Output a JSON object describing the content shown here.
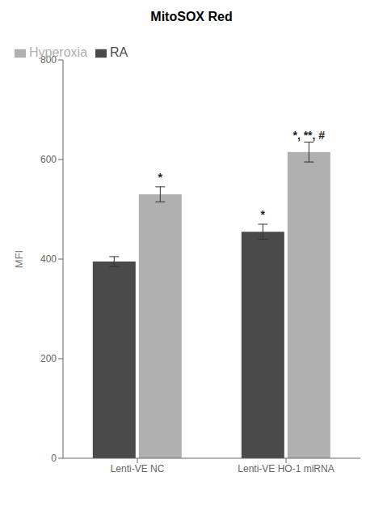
{
  "chart_data": {
    "type": "bar",
    "title": "MitoSOX Red",
    "y_label": "MFI",
    "categories": [
      "Lenti-VE NC",
      "Lenti-VE HO-1 miRNA"
    ],
    "series": [
      {
        "name": "RA",
        "color": "#4a4a4a",
        "values": [
          395,
          455
        ],
        "errors": [
          10,
          15
        ]
      },
      {
        "name": "Hyperoxia",
        "color": "#b0b0b0",
        "values": [
          530,
          615
        ],
        "errors": [
          15,
          20
        ]
      }
    ],
    "ylim": [
      0,
      800
    ],
    "yticks": [
      0,
      200,
      400,
      600,
      800
    ],
    "grid": false,
    "legend": "upper left",
    "annotations": [
      {
        "text": "*",
        "series": "Hyperoxia",
        "category": "Lenti-VE NC"
      },
      {
        "text": "*",
        "series": "RA",
        "category": "Lenti-VE HO-1 miRNA"
      },
      {
        "text": "*, **, #",
        "series": "Hyperoxia",
        "category": "Lenti-VE HO-1 miRNA"
      }
    ]
  }
}
